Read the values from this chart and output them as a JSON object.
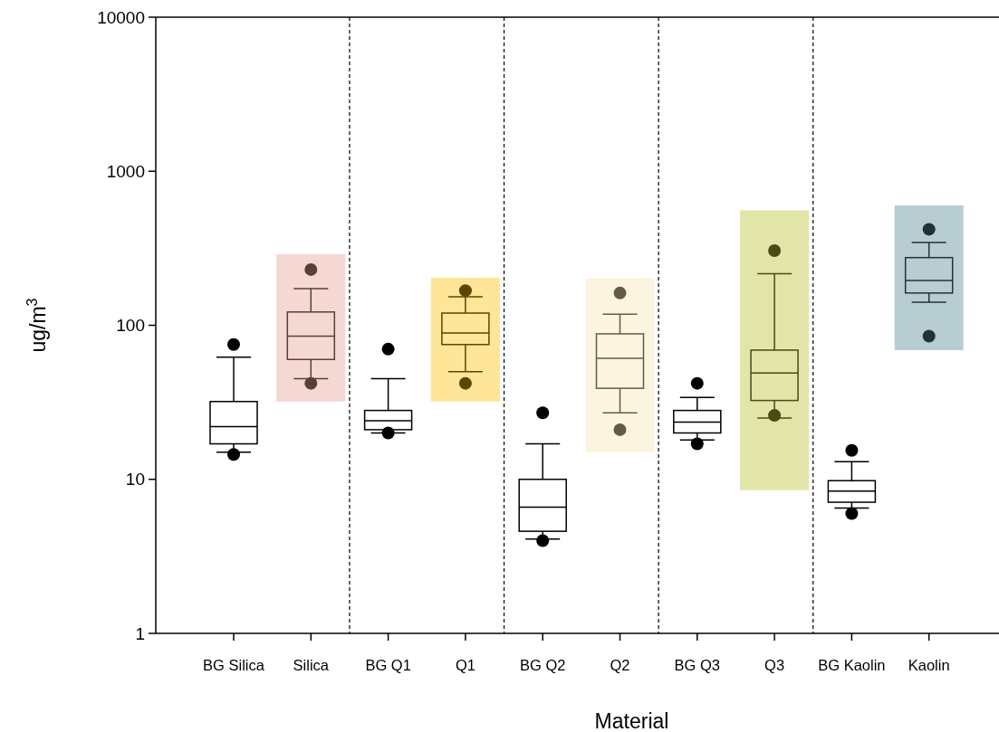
{
  "chart_data": {
    "type": "box",
    "xlabel": "Material",
    "ylabel": "ug/m$^{3}$",
    "log": true,
    "ylim": [
      1,
      10000
    ],
    "yticks": [
      1,
      10,
      100,
      1000,
      10000
    ],
    "grid": false,
    "categories": [
      "BG Silica",
      "Silica",
      "BG Q1",
      "Q1",
      "BG Q2",
      "Q2",
      "BG Q3",
      "Q3",
      "BG Kaolin",
      "Kaolin"
    ],
    "series": [
      {
        "type": "bar",
        "base": [
          null,
          32,
          null,
          32,
          null,
          15,
          null,
          8.5,
          null,
          69
        ],
        "values": [
          null,
          257,
          null,
          171,
          null,
          187,
          null,
          548.5,
          null,
          531
        ],
        "colors": [
          null,
          "#f5d8d3",
          null,
          "#fee597",
          null,
          "#fbf4de",
          null,
          "#e1e6a8",
          null,
          "#b8cdd2"
        ]
      },
      {
        "colors": [
          "#000000",
          "#5a3e38",
          "#000000",
          "#5c4500",
          "#000000",
          "#655b45",
          "#000000",
          "#4a4a14",
          "#000000",
          "#1f3238"
        ],
        "boxes": [
          {
            "low": 15,
            "q1": 17,
            "median": 22,
            "q3": 32,
            "high": 62,
            "outliers": [
              14.5,
              75
            ]
          },
          {
            "low": 45,
            "q1": 60,
            "median": 85,
            "q3": 122,
            "high": 173,
            "outliers": [
              42,
              230
            ]
          },
          {
            "low": 20,
            "q1": 21,
            "median": 24,
            "q3": 28,
            "high": 45,
            "outliers": [
              20,
              70
            ]
          },
          {
            "low": 50,
            "q1": 75,
            "median": 89,
            "q3": 120,
            "high": 153,
            "outliers": [
              42,
              168
            ]
          },
          {
            "low": 4.1,
            "q1": 4.6,
            "median": 6.6,
            "q3": 10,
            "high": 17,
            "outliers": [
              4,
              27
            ]
          },
          {
            "low": 27,
            "q1": 39,
            "median": 61,
            "q3": 88,
            "high": 118,
            "outliers": [
              21,
              162
            ]
          },
          {
            "low": 18,
            "q1": 20,
            "median": 23.5,
            "q3": 28,
            "high": 34,
            "outliers": [
              17,
              42
            ]
          },
          {
            "low": 25,
            "q1": 32.5,
            "median": 49,
            "q3": 69,
            "high": 216,
            "outliers": [
              26,
              305
            ]
          },
          {
            "low": 6.5,
            "q1": 7.1,
            "median": 8.4,
            "q3": 9.8,
            "high": 13,
            "outliers": [
              6,
              15.4
            ]
          },
          {
            "low": 141,
            "q1": 162,
            "median": 195,
            "q3": 275,
            "high": 345,
            "outliers": [
              85,
              420
            ]
          }
        ]
      }
    ]
  }
}
